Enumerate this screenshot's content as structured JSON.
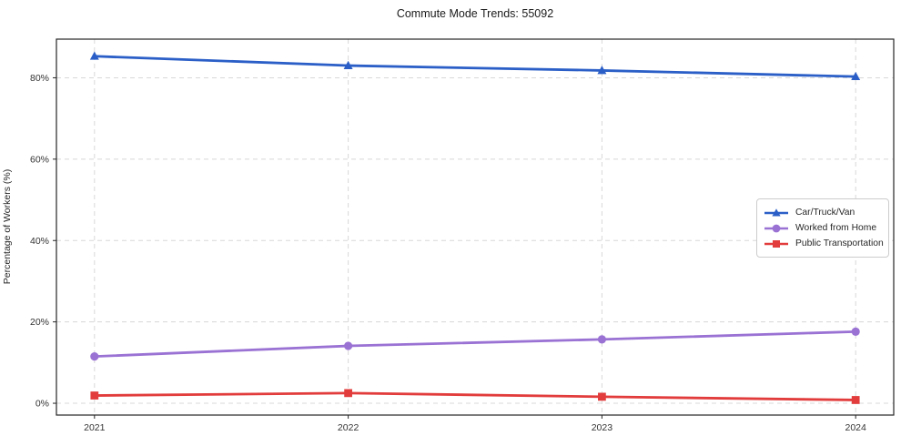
{
  "chart_data": {
    "type": "line",
    "title": "Commute Mode Trends: 55092",
    "xlabel": "",
    "ylabel": "Percentage of Workers (%)",
    "x": [
      2021,
      2022,
      2023,
      2024
    ],
    "x_tick_labels": [
      "2021",
      "2022",
      "2023",
      "2024"
    ],
    "y_ticks": [
      0,
      20,
      40,
      60,
      80
    ],
    "y_tick_labels": [
      "0%",
      "20%",
      "40%",
      "60%",
      "80%"
    ],
    "ylim": [
      -2.9,
      89.5
    ],
    "grid": true,
    "grid_style": "dashed",
    "legend_position": "center right",
    "series": [
      {
        "name": "Car/Truck/Van",
        "color": "#2b5fc7",
        "marker": "triangle",
        "values": [
          85.3,
          83.0,
          81.8,
          80.3
        ]
      },
      {
        "name": "Worked from Home",
        "color": "#9a72d4",
        "marker": "circle",
        "values": [
          11.5,
          14.1,
          15.7,
          17.6
        ]
      },
      {
        "name": "Public Transportation",
        "color": "#e23c3c",
        "marker": "square",
        "values": [
          1.9,
          2.5,
          1.6,
          0.8
        ]
      }
    ],
    "colors": {
      "grid": "#d8d8d8",
      "spine": "#262626",
      "tick_text": "#333333",
      "background": "#ffffff"
    }
  }
}
